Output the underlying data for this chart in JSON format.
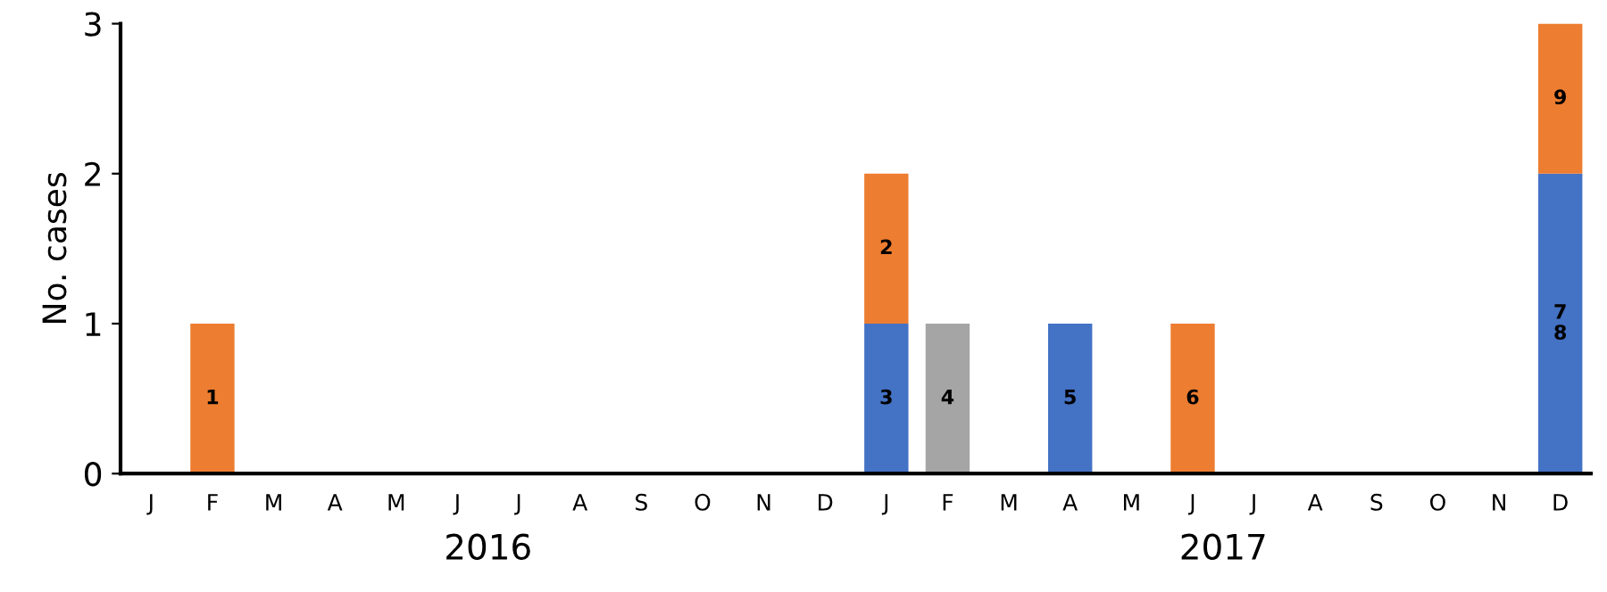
{
  "chart_data": {
    "type": "bar",
    "stacked": true,
    "ylabel": "No. cases",
    "categories": [
      "J",
      "F",
      "M",
      "A",
      "M",
      "J",
      "J",
      "A",
      "S",
      "O",
      "N",
      "D",
      "J",
      "F",
      "M",
      "A",
      "M",
      "J",
      "J",
      "A",
      "S",
      "O",
      "N",
      "D"
    ],
    "series": [
      {
        "color": "#4472c4",
        "values": [
          0,
          0,
          0,
          0,
          0,
          0,
          0,
          0,
          0,
          0,
          0,
          0,
          1,
          0,
          0,
          1,
          0,
          0,
          0,
          0,
          0,
          0,
          0,
          2
        ]
      },
      {
        "color": "#ed7d31",
        "values": [
          0,
          1,
          0,
          0,
          0,
          0,
          0,
          0,
          0,
          0,
          0,
          0,
          1,
          0,
          0,
          0,
          0,
          1,
          0,
          0,
          0,
          0,
          0,
          1
        ]
      },
      {
        "color": "#a5a5a5",
        "values": [
          0,
          0,
          0,
          0,
          0,
          0,
          0,
          0,
          0,
          0,
          0,
          0,
          0,
          1,
          0,
          0,
          0,
          0,
          0,
          0,
          0,
          0,
          0,
          0
        ]
      }
    ],
    "ylim": [
      0,
      3
    ],
    "yticks": [
      0,
      1,
      2,
      3
    ],
    "grid": false,
    "legend": false,
    "annotations": [
      "1",
      "3",
      "2",
      "4",
      "5",
      "6",
      "7\n8",
      "9",
      "2016",
      "2017"
    ]
  }
}
